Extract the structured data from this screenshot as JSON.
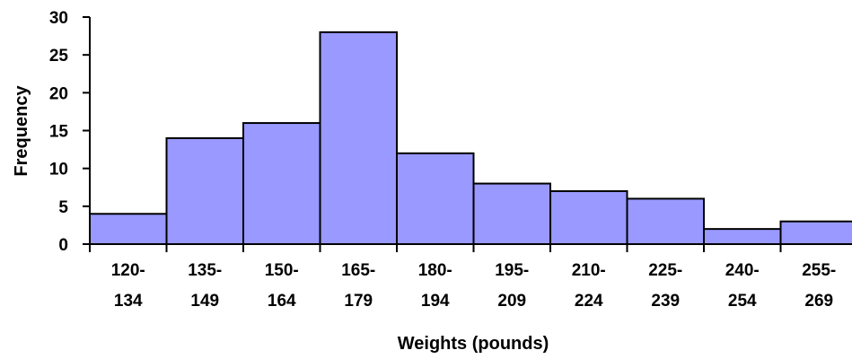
{
  "chart_data": {
    "type": "bar",
    "categories": [
      [
        "120-",
        "134"
      ],
      [
        "135-",
        "149"
      ],
      [
        "150-",
        "164"
      ],
      [
        "165-",
        "179"
      ],
      [
        "180-",
        "194"
      ],
      [
        "195-",
        "209"
      ],
      [
        "210-",
        "224"
      ],
      [
        "225-",
        "239"
      ],
      [
        "240-",
        "254"
      ],
      [
        "255-",
        "269"
      ]
    ],
    "values": [
      4,
      14,
      16,
      28,
      12,
      8,
      7,
      6,
      2,
      3
    ],
    "xlabel": "Weights (pounds)",
    "ylabel": "Frequency",
    "ylim": [
      0,
      30
    ],
    "yticks": [
      0,
      5,
      10,
      15,
      20,
      25,
      30
    ],
    "bar_color": "#9999ff",
    "grid": false,
    "legend": "none"
  }
}
